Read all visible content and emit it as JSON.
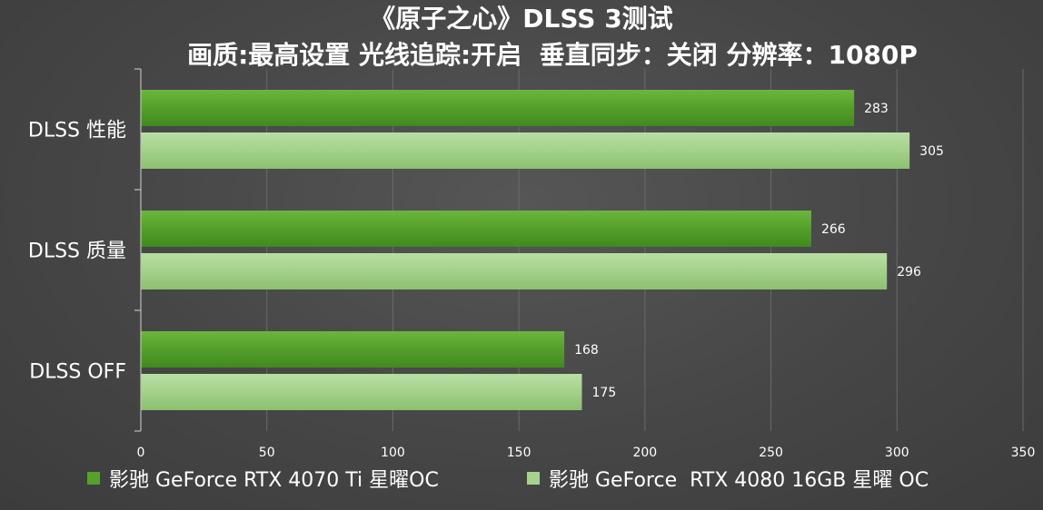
{
  "chart_data": {
    "type": "bar",
    "orientation": "horizontal",
    "title": "《原子之心》DLSS 3测试",
    "subtitle": "画质:最高设置 光线追踪:开启  垂直同步：关闭 分辨率：1080P",
    "categories": [
      "DLSS 性能",
      "DLSS 质量",
      "DLSS OFF"
    ],
    "series": [
      {
        "name": "影驰 GeForce RTX 4070 Ti 星曜OC",
        "values": [
          283,
          266,
          168
        ],
        "color": "#56a12c"
      },
      {
        "name": "影驰 GeForce  RTX 4080 16GB 星曜 OC",
        "values": [
          305,
          296,
          175
        ],
        "color": "#a5d38c"
      }
    ],
    "xlim": [
      0,
      350
    ],
    "xticks": [
      "0",
      "50",
      "100",
      "150",
      "200",
      "250",
      "300",
      "350"
    ],
    "grid": true,
    "legend_position": "bottom"
  }
}
